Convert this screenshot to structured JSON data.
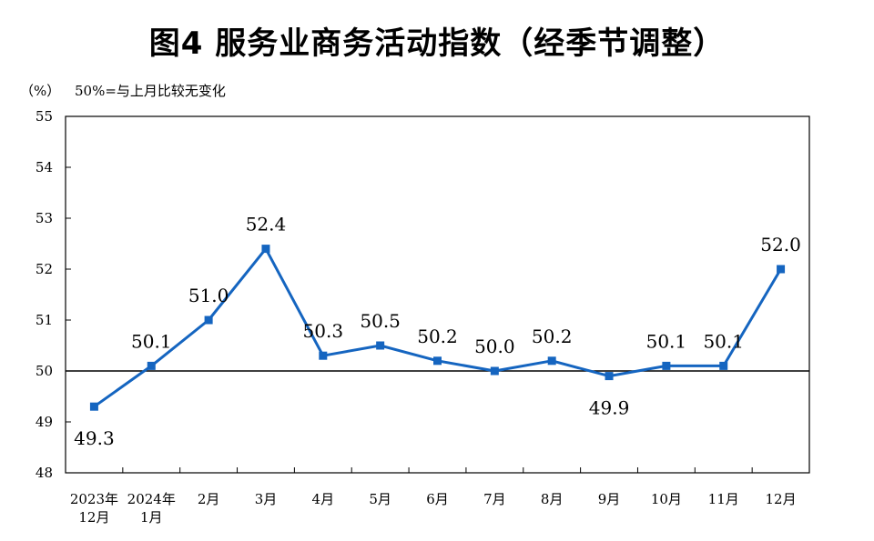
{
  "title": "图4  服务业商务活动指数（经季节调整）",
  "unit_label": "（%）",
  "reference_note": "50%=与上月比较无变化",
  "colors": {
    "line": "#1565c0",
    "axis": "#000000",
    "reference": "#000000"
  },
  "chart_data": {
    "type": "line",
    "title": "图4  服务业商务活动指数（经季节调整）",
    "xlabel": "",
    "ylabel": "（%）",
    "ylim": [
      48,
      55
    ],
    "yticks": [
      48,
      49,
      50,
      51,
      52,
      53,
      54,
      55
    ],
    "reference_line": 50,
    "grid": false,
    "categories": [
      [
        "2023年",
        "12月"
      ],
      [
        "2024年",
        "1月"
      ],
      [
        "2月"
      ],
      [
        "3月"
      ],
      [
        "4月"
      ],
      [
        "5月"
      ],
      [
        "6月"
      ],
      [
        "7月"
      ],
      [
        "8月"
      ],
      [
        "9月"
      ],
      [
        "10月"
      ],
      [
        "11月"
      ],
      [
        "12月"
      ]
    ],
    "series": [
      {
        "values": [
          49.3,
          50.1,
          51.0,
          52.4,
          50.3,
          50.5,
          50.2,
          50.0,
          50.2,
          49.9,
          50.1,
          50.1,
          52.0
        ],
        "labels": [
          "49.3",
          "50.1",
          "51.0",
          "52.4",
          "50.3",
          "50.5",
          "50.2",
          "50.0",
          "50.2",
          "49.9",
          "50.1",
          "50.1",
          "52.0"
        ],
        "label_positions": [
          "below",
          "above",
          "above",
          "above",
          "above",
          "above",
          "above",
          "above",
          "above",
          "below",
          "above",
          "above",
          "above"
        ]
      }
    ]
  }
}
